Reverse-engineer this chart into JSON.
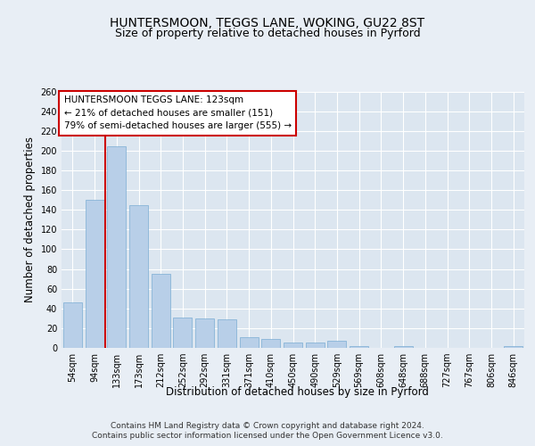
{
  "title1": "HUNTERSMOON, TEGGS LANE, WOKING, GU22 8ST",
  "title2": "Size of property relative to detached houses in Pyrford",
  "xlabel": "Distribution of detached houses by size in Pyrford",
  "ylabel": "Number of detached properties",
  "categories": [
    "54sqm",
    "94sqm",
    "133sqm",
    "173sqm",
    "212sqm",
    "252sqm",
    "292sqm",
    "331sqm",
    "371sqm",
    "410sqm",
    "450sqm",
    "490sqm",
    "529sqm",
    "569sqm",
    "608sqm",
    "648sqm",
    "688sqm",
    "727sqm",
    "767sqm",
    "806sqm",
    "846sqm"
  ],
  "values": [
    46,
    150,
    204,
    145,
    75,
    31,
    30,
    29,
    11,
    9,
    5,
    5,
    7,
    2,
    0,
    2,
    0,
    0,
    0,
    0,
    2
  ],
  "bar_color": "#b8cfe8",
  "bar_edge_color": "#7aadd4",
  "vline_color": "#cc0000",
  "vline_x_index": 2,
  "annotation_text": "HUNTERSMOON TEGGS LANE: 123sqm\n← 21% of detached houses are smaller (151)\n79% of semi-detached houses are larger (555) →",
  "annotation_box_color": "#ffffff",
  "annotation_box_edge": "#cc0000",
  "ylim": [
    0,
    260
  ],
  "yticks": [
    0,
    20,
    40,
    60,
    80,
    100,
    120,
    140,
    160,
    180,
    200,
    220,
    240,
    260
  ],
  "footer": "Contains HM Land Registry data © Crown copyright and database right 2024.\nContains public sector information licensed under the Open Government Licence v3.0.",
  "bg_color": "#e8eef5",
  "plot_bg_color": "#dce6f0",
  "grid_color": "#ffffff",
  "title_fontsize": 10,
  "subtitle_fontsize": 9,
  "axis_label_fontsize": 8.5,
  "tick_fontsize": 7,
  "footer_fontsize": 6.5,
  "annotation_fontsize": 7.5
}
